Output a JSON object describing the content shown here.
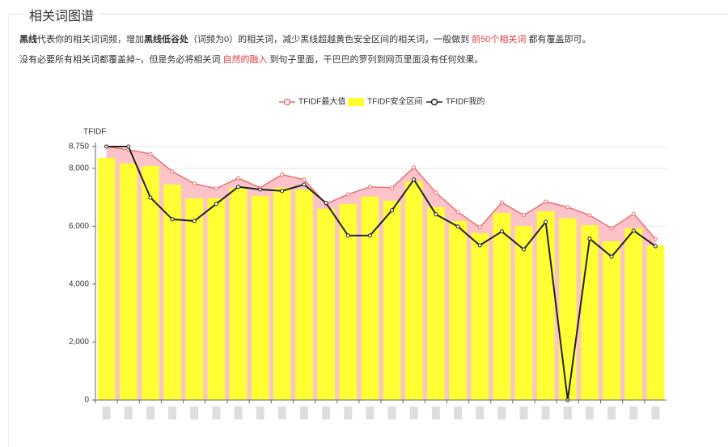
{
  "header": {
    "title": "相关词图谱"
  },
  "intro": [
    [
      {
        "text": "黑线",
        "style": "bold"
      },
      {
        "text": "代表你的相关词词频，增加",
        "style": "normal"
      },
      {
        "text": "黑线低谷处",
        "style": "bold"
      },
      {
        "text": "（词频为0）的相关词，减少黑线超越黄色安全区间的相关词，一般做到 ",
        "style": "normal"
      },
      {
        "text": "前50个相关词",
        "style": "red"
      },
      {
        "text": " 都有覆盖即可。",
        "style": "normal"
      }
    ],
    [
      {
        "text": "没有必要所有相关词都覆盖掉~，但是务必将相关词 ",
        "style": "normal"
      },
      {
        "text": "自然的融入",
        "style": "red"
      },
      {
        "text": " 到句子里面，干巴巴的罗列到网页里面没有任何效果。",
        "style": "normal"
      }
    ]
  ],
  "chart_data": {
    "type": "bar-line",
    "y_axis_label": "TFIDF",
    "categories": [
      null,
      null,
      null,
      null,
      null,
      null,
      null,
      null,
      null,
      null,
      null,
      null,
      null,
      null,
      null,
      null,
      null,
      null,
      null,
      null,
      null,
      null,
      null,
      null,
      null,
      null
    ],
    "series": [
      {
        "name": "TFIDF最大值",
        "kind": "area-line",
        "color": "#ec6f72",
        "fill": "#fcc3c8",
        "values": [
          8750,
          8640,
          8500,
          7890,
          7470,
          7300,
          7660,
          7330,
          7780,
          7610,
          6770,
          7100,
          7360,
          7330,
          8030,
          7160,
          6490,
          5960,
          6820,
          6380,
          6850,
          6660,
          6380,
          5930,
          6430,
          5560
        ]
      },
      {
        "name": "TFIDF安全区间",
        "kind": "bar",
        "color": "#ffff33",
        "values": [
          8360,
          8170,
          8080,
          7440,
          6960,
          6960,
          7330,
          7050,
          7330,
          7270,
          6600,
          6770,
          7020,
          6880,
          7550,
          6660,
          6180,
          5760,
          6460,
          6010,
          6520,
          6270,
          6040,
          5480,
          5930,
          5340
        ]
      },
      {
        "name": "TFIDF我的",
        "kind": "line",
        "color": "#222222",
        "values": [
          8750,
          8750,
          6990,
          6240,
          6180,
          6770,
          7360,
          7270,
          7220,
          7440,
          6800,
          5680,
          5680,
          6550,
          7610,
          6410,
          5990,
          5340,
          5820,
          5200,
          6150,
          0,
          5570,
          4950,
          5850,
          5310
        ]
      }
    ],
    "ylim": [
      0,
      8750
    ],
    "yticks": [
      0,
      {
        "value": 2000,
        "label": "2,000"
      },
      {
        "value": 4000,
        "label": "4,000"
      },
      {
        "value": 6000,
        "label": "6,000"
      },
      {
        "value": 8000,
        "label": "8,000"
      },
      {
        "value": 8750,
        "label": "8,750"
      }
    ],
    "grid": true,
    "legend": "top"
  }
}
